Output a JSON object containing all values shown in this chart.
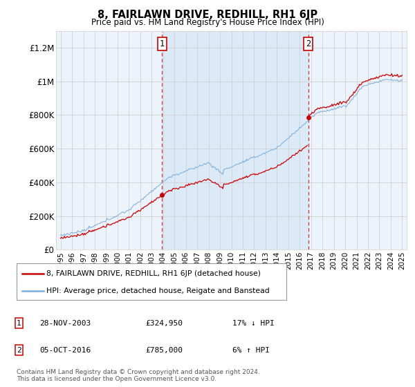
{
  "title": "8, FAIRLAWN DRIVE, REDHILL, RH1 6JP",
  "subtitle": "Price paid vs. HM Land Registry's House Price Index (HPI)",
  "ylabel_ticks": [
    "£0",
    "£200K",
    "£400K",
    "£600K",
    "£800K",
    "£1M",
    "£1.2M"
  ],
  "ytick_values": [
    0,
    200000,
    400000,
    600000,
    800000,
    1000000,
    1200000
  ],
  "ylim": [
    0,
    1300000
  ],
  "sale1_price": 324950,
  "sale2_price": 785000,
  "sale1_x": 2003.9,
  "sale2_x": 2016.75,
  "sale1_date": "28-NOV-2003",
  "sale2_date": "05-OCT-2016",
  "sale1_hpi": "17% ↓ HPI",
  "sale2_hpi": "6% ↑ HPI",
  "legend_line1": "8, FAIRLAWN DRIVE, REDHILL, RH1 6JP (detached house)",
  "legend_line2": "HPI: Average price, detached house, Reigate and Banstead",
  "footnote": "Contains HM Land Registry data © Crown copyright and database right 2024.\nThis data is licensed under the Open Government Licence v3.0.",
  "hpi_color": "#7aaddb",
  "price_color": "#cc0000",
  "dashed_line_color": "#cc0000",
  "shade_color": "#dceaf7",
  "background_color": "#ffffff",
  "grid_color": "#cccccc",
  "panel_bg": "#edf3fb"
}
